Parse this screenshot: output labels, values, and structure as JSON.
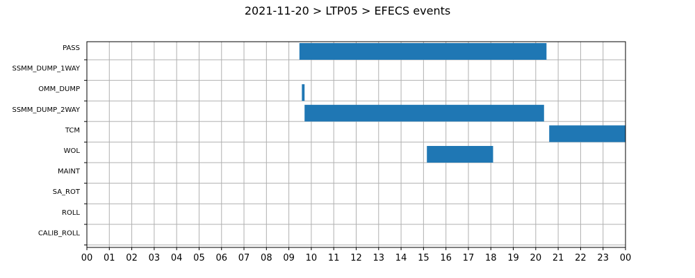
{
  "chart_data": {
    "type": "bar",
    "orientation": "horizontal-gantt",
    "title": "2021-11-20 > LTP05 > EFECS events",
    "xlabel": "",
    "ylabel": "",
    "xlim": [
      0,
      24
    ],
    "x_ticks": [
      0,
      1,
      2,
      3,
      4,
      5,
      6,
      7,
      8,
      9,
      10,
      11,
      12,
      13,
      14,
      15,
      16,
      17,
      18,
      19,
      20,
      21,
      22,
      23,
      24
    ],
    "x_tick_labels": [
      "00",
      "01",
      "02",
      "03",
      "04",
      "05",
      "06",
      "07",
      "08",
      "09",
      "10",
      "11",
      "12",
      "13",
      "14",
      "15",
      "16",
      "17",
      "18",
      "19",
      "20",
      "21",
      "22",
      "23",
      "00"
    ],
    "categories": [
      "PASS",
      "SSMM_DUMP_1WAY",
      "OMM_DUMP",
      "SSMM_DUMP_2WAY",
      "TCM",
      "WOL",
      "MAINT",
      "SA_ROT",
      "ROLL",
      "CALIB_ROLL"
    ],
    "grid": true,
    "bar_color": "#1f77b4",
    "events": [
      {
        "category": "PASS",
        "start": 9.47,
        "end": 20.48
      },
      {
        "category": "OMM_DUMP",
        "start": 9.58,
        "end": 9.7
      },
      {
        "category": "SSMM_DUMP_2WAY",
        "start": 9.7,
        "end": 20.37
      },
      {
        "category": "TCM",
        "start": 20.6,
        "end": 24.0
      },
      {
        "category": "WOL",
        "start": 15.15,
        "end": 18.1
      }
    ]
  }
}
